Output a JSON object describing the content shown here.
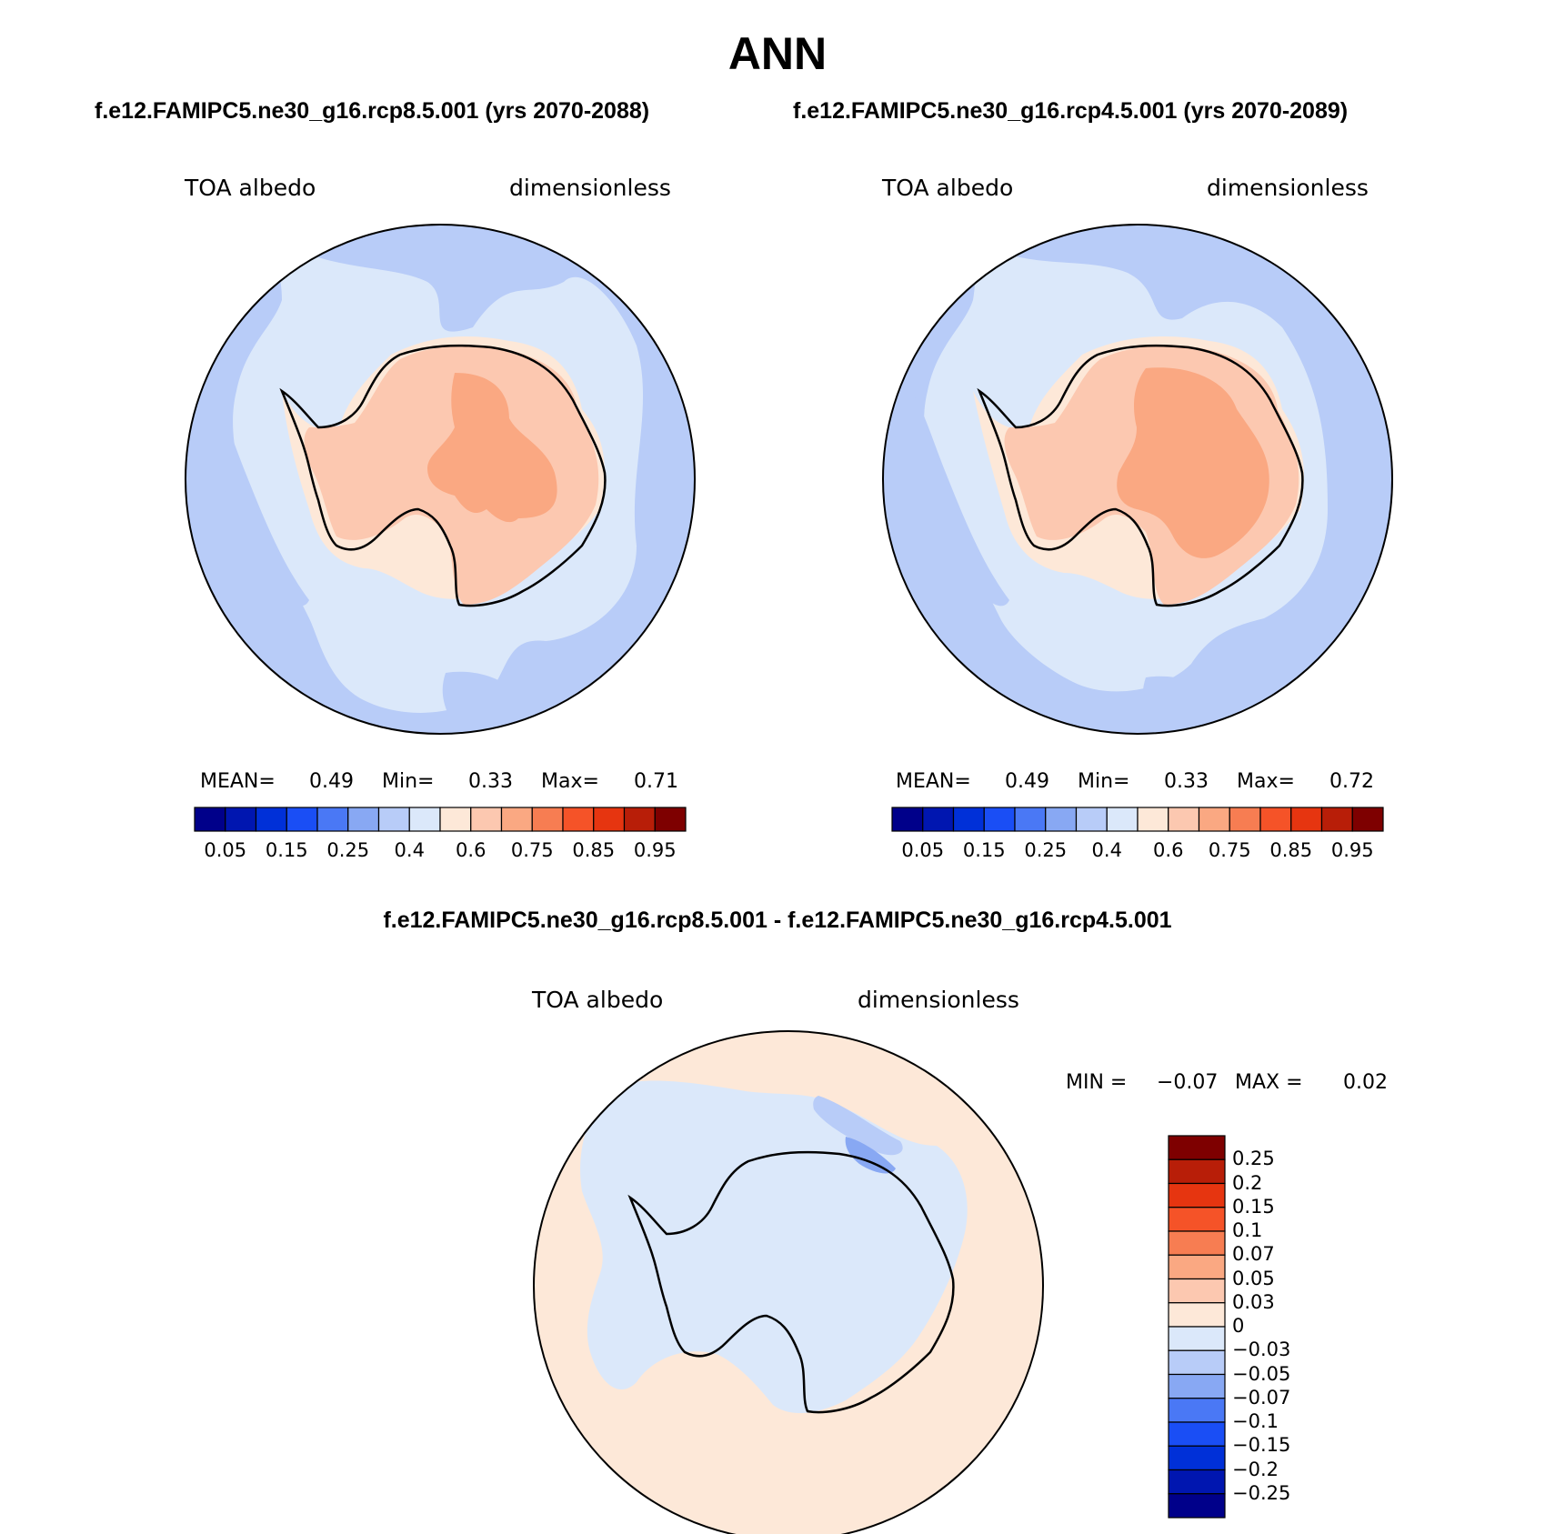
{
  "title": "ANN",
  "top_panels": [
    {
      "case_title": "f.e12.FAMIPC5.ne30_g16.rcp8.5.001 (yrs 2070-2088)",
      "variable": "TOA albedo",
      "units": "dimensionless",
      "stats": {
        "mean_label": "MEAN=",
        "mean": "0.49",
        "min_label": "Min=",
        "min": "0.33",
        "max_label": "Max=",
        "max": "0.71"
      }
    },
    {
      "case_title": "f.e12.FAMIPC5.ne30_g16.rcp4.5.001 (yrs 2070-2089)",
      "variable": "TOA albedo",
      "units": "dimensionless",
      "stats": {
        "mean_label": "MEAN=",
        "mean": "0.49",
        "min_label": "Min=",
        "min": "0.33",
        "max_label": "Max=",
        "max": "0.72"
      }
    }
  ],
  "diff_panel": {
    "title": "f.e12.FAMIPC5.ne30_g16.rcp8.5.001 - f.e12.FAMIPC5.ne30_g16.rcp4.5.001",
    "variable": "TOA albedo",
    "units": "dimensionless",
    "stats": {
      "min_label": "MIN =",
      "min": "−0.07",
      "max_label": "MAX =",
      "max": "0.02"
    }
  },
  "abs_colorbar": {
    "colors": [
      "#00008a",
      "#0016b0",
      "#0030d8",
      "#1a4ef5",
      "#4a78f5",
      "#88a8f3",
      "#b8ccf8",
      "#dbe8fa",
      "#fde8d8",
      "#fcc8b0",
      "#faa882",
      "#f77d52",
      "#f55328",
      "#e63510",
      "#b81e08",
      "#7e0000"
    ],
    "labels": [
      "0.05",
      "0.15",
      "0.25",
      "0.4",
      "0.6",
      "0.75",
      "0.85",
      "0.95"
    ]
  },
  "diff_colorbar": {
    "colors_top_to_bottom": [
      "#7e0000",
      "#b81e08",
      "#e63510",
      "#f55328",
      "#f77d52",
      "#faa882",
      "#fcc8b0",
      "#fde8d8",
      "#dbe8fa",
      "#b8ccf8",
      "#88a8f3",
      "#4a78f5",
      "#1a4ef5",
      "#0030d8",
      "#0016b0",
      "#00008a"
    ],
    "labels": [
      "0.25",
      "0.2",
      "0.15",
      "0.1",
      "0.07",
      "0.05",
      "0.03",
      "0",
      "−0.03",
      "−0.05",
      "−0.07",
      "−0.1",
      "−0.15",
      "−0.2",
      "−0.25"
    ]
  },
  "map_colors": {
    "ocean_low": "#b8ccf8",
    "ocean_mid": "#dbe8fa",
    "ice_edge": "#fde8d8",
    "ice": "#fcc8b0",
    "ice_high": "#faa882",
    "diff_pos": "#fde8d8",
    "diff_neg": "#dbe8fa",
    "diff_neg2": "#b8ccf8",
    "diff_neg3": "#88a8f3",
    "coast": "#000000"
  }
}
